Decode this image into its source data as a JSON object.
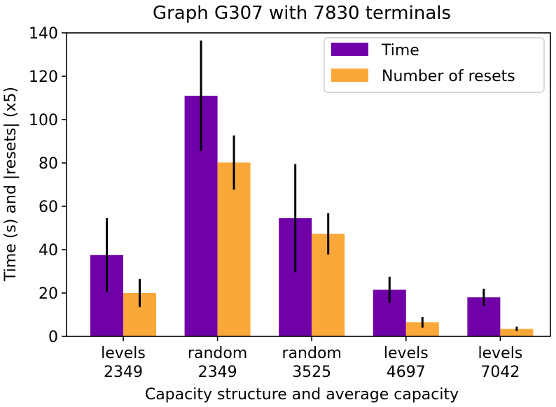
{
  "chart_data": {
    "type": "bar",
    "title": "Graph G307 with 7830 terminals",
    "xlabel": "Capacity structure and average capacity",
    "ylabel": "Time (s) and |resets| (x5)",
    "ylim": [
      0,
      140
    ],
    "yticks": [
      0,
      20,
      40,
      60,
      80,
      100,
      120,
      140
    ],
    "categories": [
      [
        "levels",
        "2349"
      ],
      [
        "random",
        "2349"
      ],
      [
        "random",
        "3525"
      ],
      [
        "levels",
        "4697"
      ],
      [
        "levels",
        "7042"
      ]
    ],
    "series": [
      {
        "name": "Time",
        "color": "#7000a8",
        "values": [
          37.5,
          111,
          54.5,
          21.5,
          18
        ],
        "errors": [
          17,
          25.5,
          25,
          6,
          4
        ]
      },
      {
        "name": "Number of resets",
        "color": "#fba83a",
        "values": [
          20,
          80.2,
          47.3,
          6.5,
          3.5
        ],
        "errors": [
          6.5,
          12.5,
          9.5,
          2.5,
          1
        ]
      }
    ],
    "legend_position": "top-right"
  }
}
